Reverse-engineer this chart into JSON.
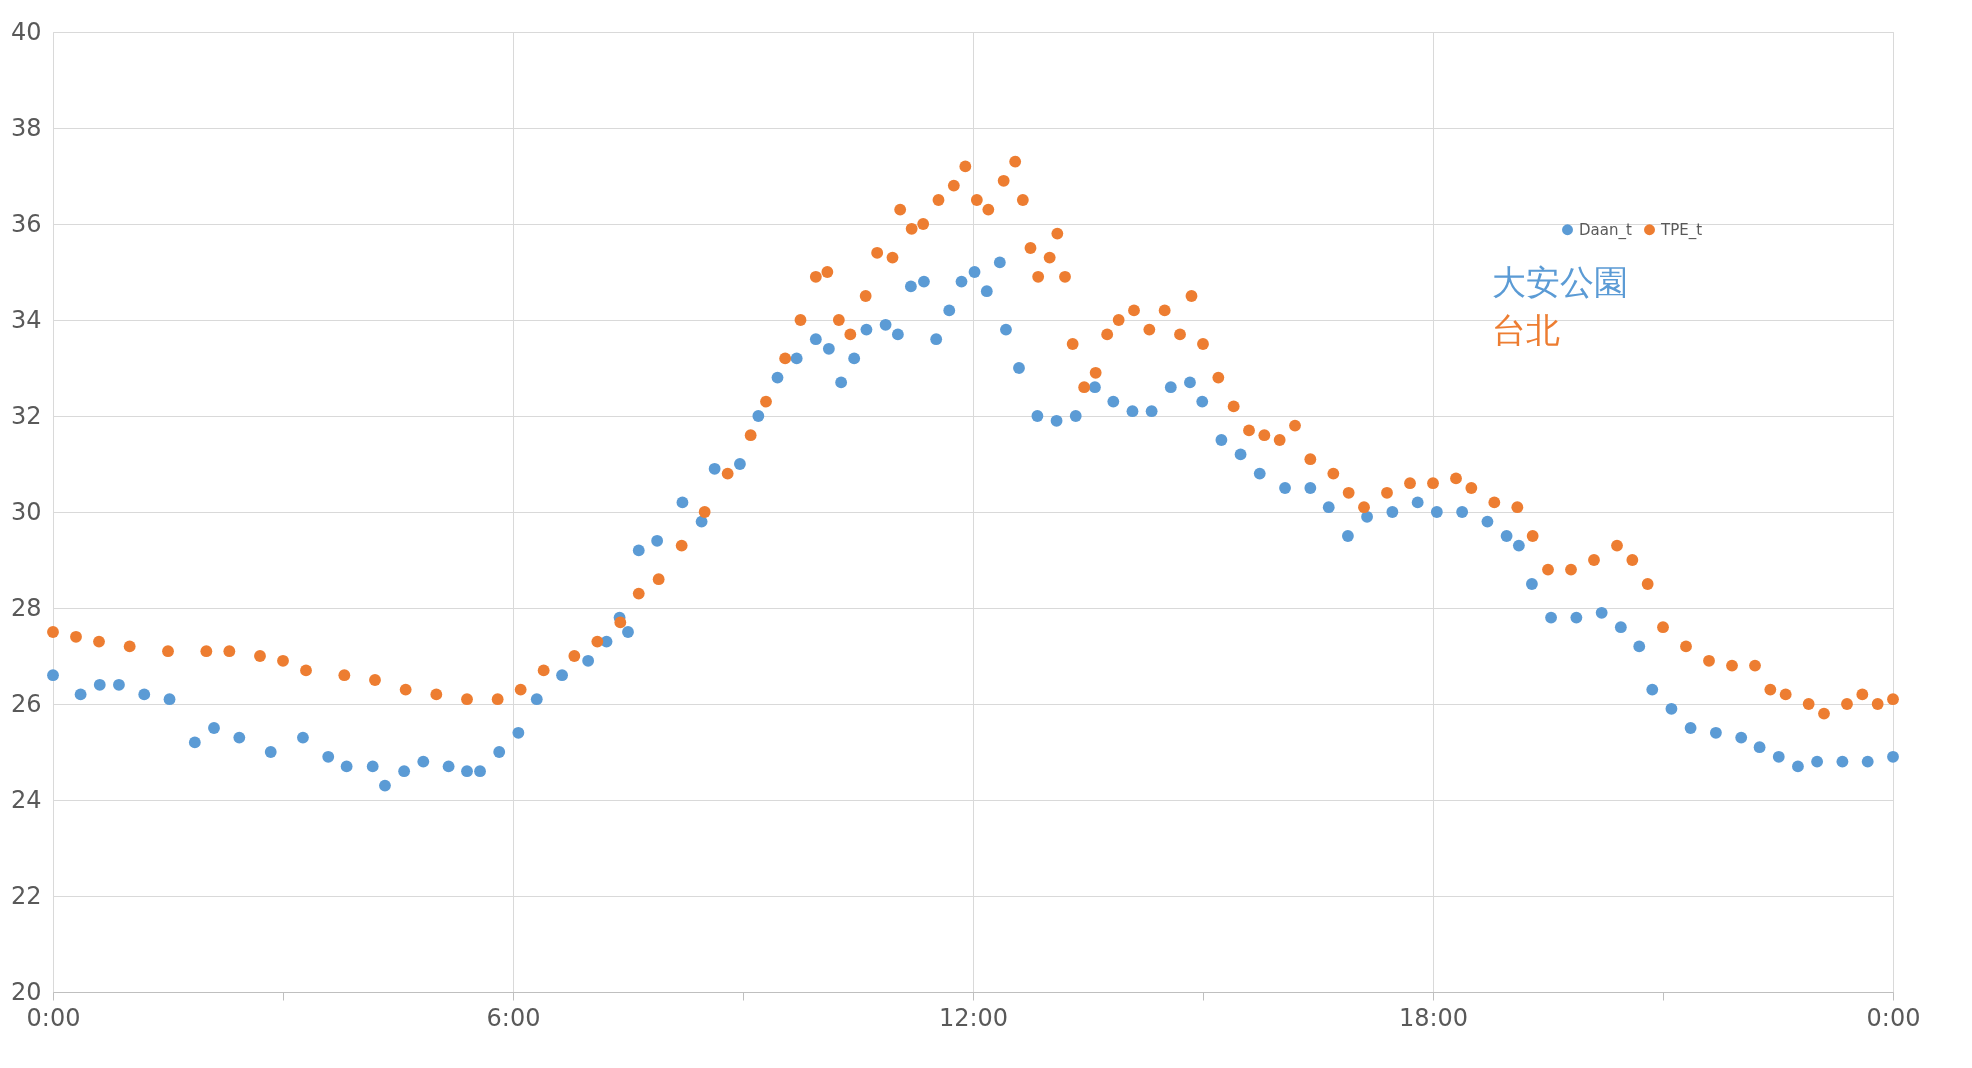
{
  "chart_data": {
    "type": "scatter",
    "marker": "circle",
    "grid": true,
    "legend": "top right",
    "xlim": [
      0,
      24
    ],
    "xticks": [
      {
        "value": 0,
        "label": "0:00"
      },
      {
        "value": 3,
        "label": null
      },
      {
        "value": 6,
        "label": "6:00"
      },
      {
        "value": 9,
        "label": null
      },
      {
        "value": 12,
        "label": "12:00"
      },
      {
        "value": 15,
        "label": null
      },
      {
        "value": 18,
        "label": "18:00"
      },
      {
        "value": 21,
        "label": null
      },
      {
        "value": 24,
        "label": "0:00"
      }
    ],
    "ylim": [
      20,
      40
    ],
    "yticks": [
      20,
      22,
      24,
      26,
      28,
      30,
      32,
      34,
      36,
      38,
      40
    ],
    "annotations": [
      "大安公園",
      "台北"
    ],
    "series": [
      {
        "name": "Daan_t",
        "color": "#5b9bd5",
        "x": [
          0,
          0.36,
          0.61,
          0.86,
          1.19,
          1.52,
          1.85,
          2.1,
          2.43,
          2.84,
          3.26,
          3.59,
          3.83,
          4.17,
          4.33,
          4.58,
          4.83,
          5.16,
          5.4,
          5.57,
          5.82,
          6.07,
          6.31,
          6.64,
          6.98,
          7.22,
          7.39,
          7.5,
          7.64,
          7.88,
          8.21,
          8.46,
          8.63,
          8.96,
          9.2,
          9.45,
          9.7,
          9.95,
          10.12,
          10.28,
          10.45,
          10.61,
          10.86,
          11.02,
          11.19,
          11.36,
          11.52,
          11.69,
          11.85,
          12.02,
          12.18,
          12.35,
          12.43,
          12.6,
          12.84,
          13.09,
          13.34,
          13.59,
          13.83,
          14.08,
          14.33,
          14.58,
          14.83,
          14.99,
          15.24,
          15.49,
          15.74,
          16.07,
          16.4,
          16.64,
          16.89,
          17.14,
          17.47,
          17.8,
          18.05,
          18.38,
          18.71,
          18.96,
          19.12,
          19.29,
          19.54,
          19.87,
          20.2,
          20.45,
          20.69,
          20.86,
          21.11,
          21.36,
          21.69,
          22.02,
          22.26,
          22.51,
          22.76,
          23.01,
          23.34,
          23.67,
          24
        ],
        "values": [
          26.6,
          26.2,
          26.4,
          26.4,
          26.2,
          26.1,
          25.2,
          25.5,
          25.3,
          25.0,
          25.3,
          24.9,
          24.7,
          24.7,
          24.3,
          24.6,
          24.8,
          24.7,
          24.6,
          24.6,
          25.0,
          25.4,
          26.1,
          26.6,
          26.9,
          27.3,
          27.8,
          27.5,
          29.2,
          29.4,
          30.2,
          29.8,
          30.9,
          31.0,
          32.0,
          32.8,
          33.2,
          33.6,
          33.4,
          32.7,
          33.2,
          33.8,
          33.9,
          33.7,
          34.7,
          34.8,
          33.6,
          34.2,
          34.8,
          35.0,
          34.6,
          35.2,
          33.8,
          33.0,
          32.0,
          31.9,
          32.0,
          32.6,
          32.3,
          32.1,
          32.1,
          32.6,
          32.7,
          32.3,
          31.5,
          31.2,
          30.8,
          30.5,
          30.5,
          30.1,
          29.5,
          29.9,
          30.0,
          30.2,
          30.0,
          30.0,
          29.8,
          29.5,
          29.3,
          28.5,
          27.8,
          27.8,
          27.9,
          27.6,
          27.2,
          26.3,
          25.9,
          25.5,
          25.4,
          25.3,
          25.1,
          24.9,
          24.7,
          24.8,
          24.8,
          24.8,
          24.9
        ]
      },
      {
        "name": "TPE_t",
        "color": "#ed7d31",
        "x": [
          0,
          0.3,
          0.6,
          1.0,
          1.5,
          2.0,
          2.3,
          2.7,
          3.0,
          3.3,
          3.8,
          4.2,
          4.6,
          5.0,
          5.4,
          5.8,
          6.1,
          6.4,
          6.8,
          7.1,
          7.4,
          7.64,
          7.9,
          8.2,
          8.5,
          8.8,
          9.1,
          9.3,
          9.55,
          9.75,
          9.95,
          10.1,
          10.25,
          10.4,
          10.6,
          10.75,
          10.95,
          11.05,
          11.2,
          11.35,
          11.55,
          11.75,
          11.9,
          12.05,
          12.2,
          12.4,
          12.55,
          12.65,
          12.75,
          12.85,
          13.0,
          13.1,
          13.2,
          13.3,
          13.45,
          13.6,
          13.75,
          13.9,
          14.1,
          14.3,
          14.5,
          14.7,
          14.85,
          15.0,
          15.2,
          15.4,
          15.6,
          15.8,
          16.0,
          16.2,
          16.4,
          16.7,
          16.9,
          17.1,
          17.4,
          17.7,
          18.0,
          18.3,
          18.5,
          18.8,
          19.1,
          19.3,
          19.5,
          19.8,
          20.1,
          20.4,
          20.6,
          20.8,
          21.0,
          21.3,
          21.6,
          21.9,
          22.2,
          22.4,
          22.6,
          22.9,
          23.1,
          23.4,
          23.6,
          23.8,
          24
        ],
        "values": [
          27.5,
          27.4,
          27.3,
          27.2,
          27.1,
          27.1,
          27.1,
          27.0,
          26.9,
          26.7,
          26.6,
          26.5,
          26.3,
          26.2,
          26.1,
          26.1,
          26.3,
          26.7,
          27.0,
          27.3,
          27.7,
          28.3,
          28.6,
          29.3,
          30.0,
          30.8,
          31.6,
          32.3,
          33.2,
          34.0,
          34.9,
          35.0,
          34.0,
          33.7,
          34.5,
          35.4,
          35.3,
          36.3,
          35.9,
          36.0,
          36.5,
          36.8,
          37.2,
          36.5,
          36.3,
          36.9,
          37.3,
          36.5,
          35.5,
          34.9,
          35.3,
          35.8,
          34.9,
          33.5,
          32.6,
          32.9,
          33.7,
          34.0,
          34.2,
          33.8,
          34.2,
          33.7,
          34.5,
          33.5,
          32.8,
          32.2,
          31.7,
          31.6,
          31.5,
          31.8,
          31.1,
          30.8,
          30.4,
          30.1,
          30.4,
          30.6,
          30.6,
          30.7,
          30.5,
          30.2,
          30.1,
          29.5,
          28.8,
          28.8,
          29.0,
          29.3,
          29.0,
          28.5,
          27.6,
          27.2,
          26.9,
          26.8,
          26.8,
          26.3,
          26.2,
          26.0,
          25.8,
          26.0,
          26.2,
          26.0,
          26.1
        ]
      }
    ]
  }
}
